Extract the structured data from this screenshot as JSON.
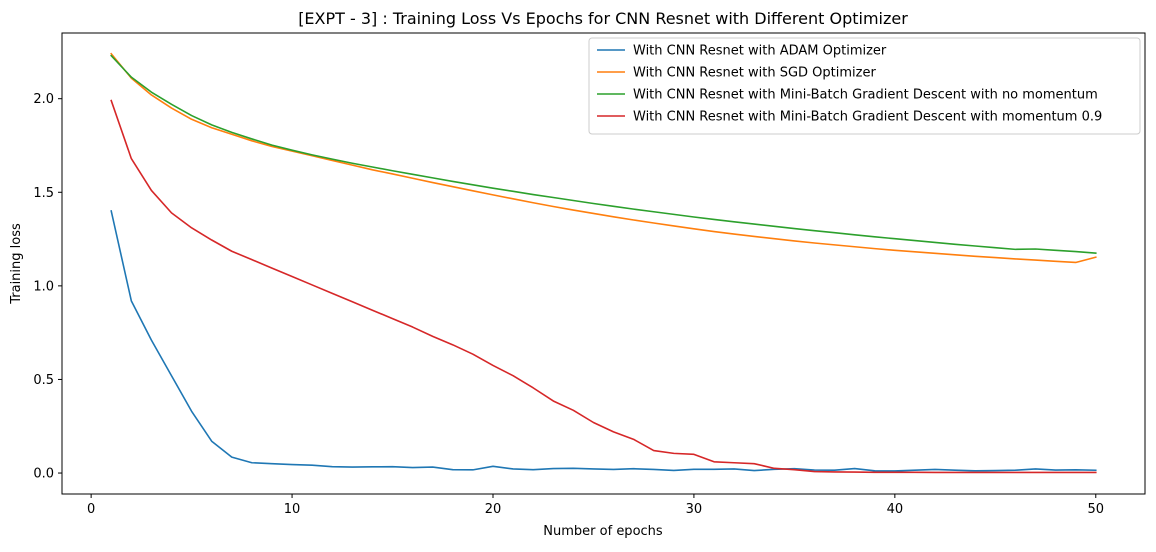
{
  "chart_data": {
    "type": "line",
    "title": "[EXPT - 3] : Training Loss Vs Epochs for CNN Resnet with Different Optimizer",
    "xlabel": "Number of epochs",
    "ylabel": "Training loss",
    "xlim": [
      -1.45,
      52.45
    ],
    "ylim": [
      -0.112,
      2.351
    ],
    "xticks": [
      0,
      10,
      20,
      30,
      40,
      50
    ],
    "yticks": [
      0.0,
      0.5,
      1.0,
      1.5,
      2.0
    ],
    "xtick_labels": [
      "0",
      "10",
      "20",
      "30",
      "40",
      "50"
    ],
    "ytick_labels": [
      "0.0",
      "0.5",
      "1.0",
      "1.5",
      "2.0"
    ],
    "grid": false,
    "legend_position": "top-right",
    "x": [
      1,
      2,
      3,
      4,
      5,
      6,
      7,
      8,
      9,
      10,
      11,
      12,
      13,
      14,
      15,
      16,
      17,
      18,
      19,
      20,
      21,
      22,
      23,
      24,
      25,
      26,
      27,
      28,
      29,
      30,
      31,
      32,
      33,
      34,
      35,
      36,
      37,
      38,
      39,
      40,
      41,
      42,
      43,
      44,
      45,
      46,
      47,
      48,
      49,
      50
    ],
    "series": [
      {
        "name": "With CNN Resnet with ADAM Optimizer",
        "color": "#1f77b4",
        "values": [
          1.4,
          0.92,
          0.71,
          0.52,
          0.33,
          0.17,
          0.085,
          0.055,
          0.05,
          0.045,
          0.042,
          0.034,
          0.032,
          0.033,
          0.034,
          0.029,
          0.032,
          0.018,
          0.017,
          0.036,
          0.022,
          0.018,
          0.024,
          0.025,
          0.022,
          0.019,
          0.023,
          0.019,
          0.014,
          0.02,
          0.02,
          0.022,
          0.013,
          0.02,
          0.023,
          0.016,
          0.015,
          0.024,
          0.012,
          0.011,
          0.015,
          0.019,
          0.015,
          0.012,
          0.013,
          0.015,
          0.022,
          0.016,
          0.017,
          0.015
        ]
      },
      {
        "name": "With CNN Resnet with SGD Optimizer",
        "color": "#ff7f0e",
        "values": [
          2.24,
          2.11,
          2.02,
          1.95,
          1.89,
          1.845,
          1.81,
          1.775,
          1.745,
          1.72,
          1.695,
          1.67,
          1.645,
          1.62,
          1.598,
          1.575,
          1.552,
          1.53,
          1.508,
          1.486,
          1.465,
          1.444,
          1.424,
          1.405,
          1.387,
          1.369,
          1.352,
          1.336,
          1.32,
          1.305,
          1.29,
          1.277,
          1.264,
          1.252,
          1.24,
          1.229,
          1.219,
          1.209,
          1.199,
          1.19,
          1.182,
          1.174,
          1.166,
          1.158,
          1.151,
          1.144,
          1.138,
          1.131,
          1.125,
          1.153
        ]
      },
      {
        "name": "With CNN Resnet with Mini-Batch Gradient Descent with no momentum",
        "color": "#2ca02c",
        "values": [
          2.23,
          2.115,
          2.035,
          1.97,
          1.91,
          1.86,
          1.82,
          1.785,
          1.752,
          1.725,
          1.7,
          1.677,
          1.655,
          1.635,
          1.615,
          1.596,
          1.577,
          1.558,
          1.54,
          1.522,
          1.505,
          1.488,
          1.472,
          1.456,
          1.44,
          1.425,
          1.41,
          1.396,
          1.382,
          1.368,
          1.355,
          1.342,
          1.33,
          1.318,
          1.306,
          1.295,
          1.284,
          1.273,
          1.262,
          1.252,
          1.242,
          1.232,
          1.222,
          1.213,
          1.204,
          1.195,
          1.197,
          1.19,
          1.183,
          1.175
        ]
      },
      {
        "name": "With CNN Resnet with Mini-Batch Gradient Descent with momentum 0.9",
        "color": "#d62728",
        "values": [
          1.99,
          1.68,
          1.51,
          1.39,
          1.31,
          1.245,
          1.185,
          1.14,
          1.095,
          1.05,
          1.005,
          0.96,
          0.915,
          0.87,
          0.825,
          0.78,
          0.73,
          0.685,
          0.635,
          0.575,
          0.52,
          0.455,
          0.385,
          0.335,
          0.27,
          0.22,
          0.18,
          0.12,
          0.105,
          0.1,
          0.06,
          0.055,
          0.05,
          0.025,
          0.018,
          0.008,
          0.006,
          0.005,
          0.004,
          0.004,
          0.004,
          0.003,
          0.003,
          0.003,
          0.003,
          0.003,
          0.003,
          0.003,
          0.003,
          0.003
        ]
      }
    ]
  }
}
